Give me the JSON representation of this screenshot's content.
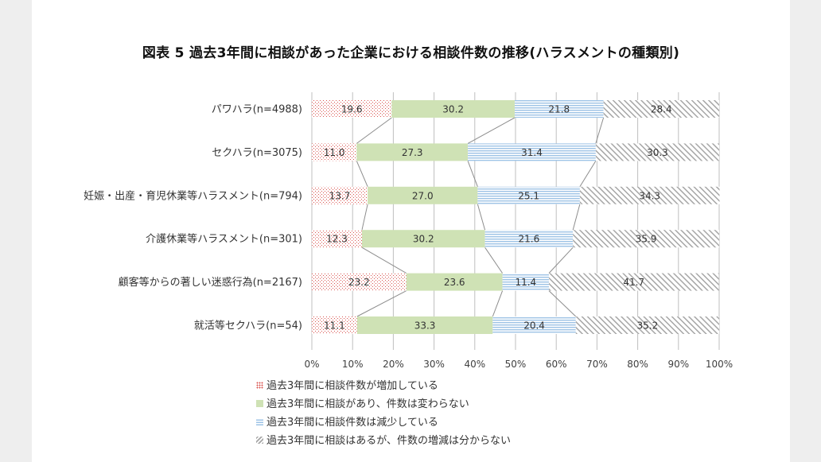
{
  "title": "図表 5 過去3年間に相談があった企業における相談件数の推移(ハラスメントの種類別)",
  "colors": {
    "increase": "#d9534f",
    "unchanged": "#cfe2b5",
    "decrease": "#9dc3e6",
    "unknown": "#a6a6a6",
    "axis": "#bfbfbf",
    "connector": "#8c8c8c"
  },
  "chart_data": {
    "type": "bar",
    "stacked": true,
    "orientation": "horizontal",
    "categories": [
      "パワハラ(n=4988)",
      "セクハラ(n=3075)",
      "妊娠・出産・育児休業等ハラスメント(n=794)",
      "介護休業等ハラスメント(n=301)",
      "顧客等からの著しい迷惑行為(n=2167)",
      "就活等セクハラ(n=54)"
    ],
    "series": [
      {
        "name": "過去3年間に相談件数が増加している",
        "pattern": "dots",
        "values": [
          19.6,
          11.0,
          13.7,
          12.3,
          23.2,
          11.1
        ]
      },
      {
        "name": "過去3年間に相談があり、件数は変わらない",
        "pattern": "solid",
        "values": [
          30.2,
          27.3,
          27.0,
          30.2,
          23.6,
          33.3
        ]
      },
      {
        "name": "過去3年間に相談件数は減少している",
        "pattern": "hlines",
        "values": [
          21.8,
          31.4,
          25.1,
          21.6,
          11.4,
          20.4
        ]
      },
      {
        "name": "過去3年間に相談はあるが、件数の増減は分からない",
        "pattern": "diag",
        "values": [
          28.4,
          30.3,
          34.3,
          35.9,
          41.7,
          35.2
        ]
      }
    ],
    "value_labels": [
      [
        "19.6",
        "30.2",
        "21.8",
        "28.4"
      ],
      [
        "11.0",
        "27.3",
        "31.4",
        "30.3"
      ],
      [
        "13.7",
        "27.0",
        "25.1",
        "34.3"
      ],
      [
        "12.3",
        "30.2",
        "21.6",
        "35.9"
      ],
      [
        "23.2",
        "23.6",
        "11.4",
        "41.7"
      ],
      [
        "11.1",
        "33.3",
        "20.4",
        "35.2"
      ]
    ],
    "x_ticks": [
      "0%",
      "10%",
      "20%",
      "30%",
      "40%",
      "50%",
      "60%",
      "70%",
      "80%",
      "90%",
      "100%"
    ],
    "xlim": [
      0,
      100
    ],
    "grid": true,
    "series_lines": true,
    "legend_position": "bottom"
  }
}
